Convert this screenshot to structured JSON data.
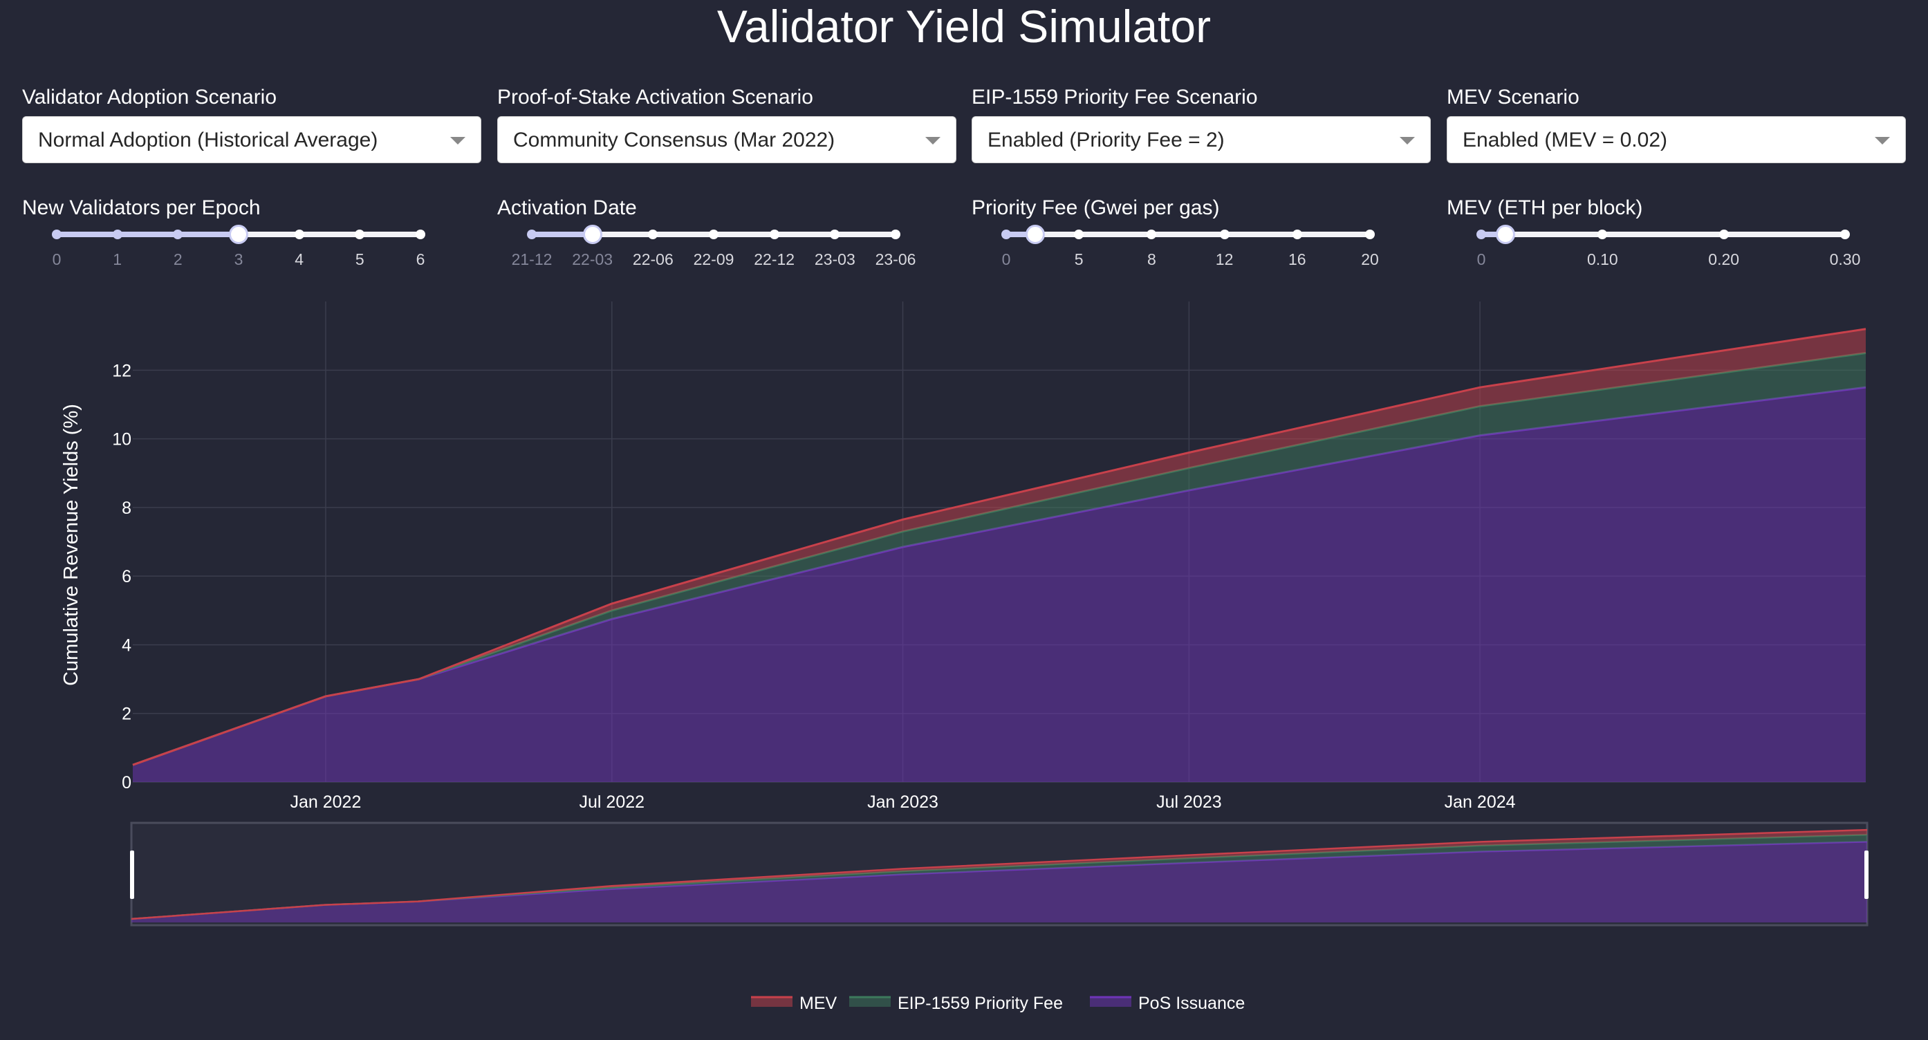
{
  "title": "Validator Yield Simulator",
  "dropdowns": [
    {
      "label": "Validator Adoption Scenario",
      "value": "Normal Adoption (Historical Average)"
    },
    {
      "label": "Proof-of-Stake Activation Scenario",
      "value": "Community Consensus (Mar 2022)"
    },
    {
      "label": "EIP-1559 Priority Fee Scenario",
      "value": "Enabled (Priority Fee = 2)"
    },
    {
      "label": "MEV Scenario",
      "value": "Enabled (MEV = 0.02)"
    }
  ],
  "sliders": [
    {
      "label": "New Validators per Epoch",
      "marks": [
        "0",
        "1",
        "2",
        "3",
        "4",
        "5",
        "6"
      ],
      "min": 0,
      "max": 6,
      "value": 3
    },
    {
      "label": "Activation Date",
      "marks": [
        "21-12",
        "22-03",
        "22-06",
        "22-09",
        "22-12",
        "23-03",
        "23-06"
      ],
      "min": 0,
      "max": 6,
      "value": 1
    },
    {
      "label": "Priority Fee (Gwei per gas)",
      "marks": [
        "0",
        "5",
        "8",
        "12",
        "16",
        "20"
      ],
      "mark_values": [
        0,
        5,
        8,
        12,
        16,
        20
      ],
      "min": 0,
      "max": 20,
      "value": 2
    },
    {
      "label": "MEV (ETH per block)",
      "marks": [
        "0",
        "0.10",
        "0.20",
        "0.30"
      ],
      "mark_values": [
        0,
        0.1,
        0.2,
        0.3
      ],
      "min": 0,
      "max": 0.3,
      "value": 0.02
    }
  ],
  "colors": {
    "mev": "#c8414b",
    "priority_fee": "#3d7a5c",
    "pos_issuance": "#6f35b8",
    "background": "#252736"
  },
  "chart_data": {
    "type": "area",
    "stacked": true,
    "title": "",
    "xlabel": "",
    "ylabel": "Cumulative Revenue Yields (%)",
    "xlim": [
      "2021-09-01",
      "2024-09-01"
    ],
    "ylim": [
      0,
      13.8
    ],
    "yticks": [
      0,
      2,
      4,
      6,
      8,
      10,
      12
    ],
    "xticks": [
      {
        "date": "2022-01-01",
        "label": "Jan 2022"
      },
      {
        "date": "2022-07-01",
        "label": "Jul 2022"
      },
      {
        "date": "2023-01-01",
        "label": "Jan 2023"
      },
      {
        "date": "2023-07-01",
        "label": "Jul 2023"
      },
      {
        "date": "2024-01-01",
        "label": "Jan 2024"
      }
    ],
    "grid": true,
    "rangeslider": true,
    "legend": "bottom-center",
    "x": [
      "2021-09-01",
      "2022-01-01",
      "2022-03-01",
      "2022-07-01",
      "2023-01-01",
      "2023-07-01",
      "2024-01-01",
      "2024-09-01"
    ],
    "series": [
      {
        "name": "PoS Issuance",
        "values": [
          0.5,
          2.5,
          3.0,
          4.75,
          6.85,
          8.5,
          10.1,
          11.5
        ]
      },
      {
        "name": "EIP-1559 Priority Fee",
        "values": [
          0,
          0,
          0,
          0.25,
          0.45,
          0.65,
          0.85,
          1.0
        ]
      },
      {
        "name": "MEV",
        "values": [
          0,
          0,
          0,
          0.2,
          0.35,
          0.45,
          0.55,
          0.7
        ]
      }
    ]
  }
}
